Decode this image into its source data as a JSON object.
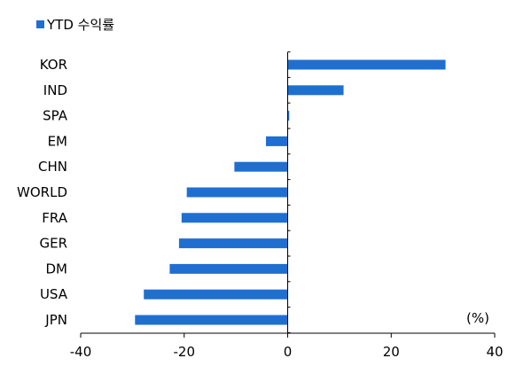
{
  "chart_data": {
    "type": "bar",
    "orientation": "horizontal",
    "categories": [
      "KOR",
      "IND",
      "SPA",
      "EM",
      "CHN",
      "WORLD",
      "FRA",
      "GER",
      "DM",
      "USA",
      "JPN"
    ],
    "series": [
      {
        "name": "YTD 수익률",
        "values": [
          30.5,
          10.8,
          0.3,
          -4.2,
          -10.3,
          -19.5,
          -20.5,
          -21.0,
          -22.8,
          -27.8,
          -29.5
        ],
        "color": "#1f6fd1"
      }
    ],
    "xlim": [
      -40,
      40
    ],
    "xticks": [
      "-40",
      "-20",
      "0",
      "20",
      "40"
    ],
    "unit": "(%)",
    "legend_position": "top-left",
    "grid": false
  }
}
